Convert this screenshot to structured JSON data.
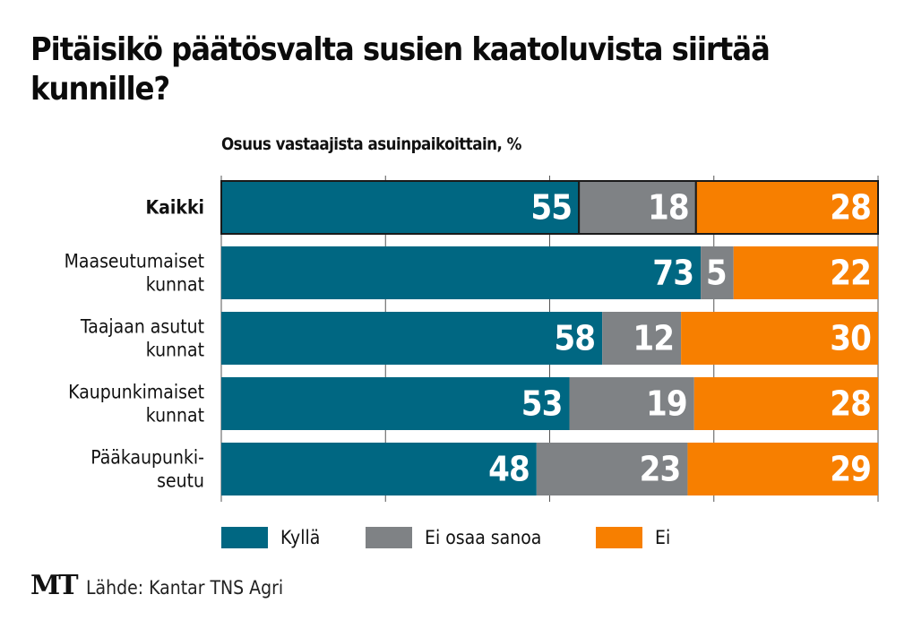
{
  "chart_data": {
    "type": "bar",
    "orientation": "horizontal",
    "stacked": true,
    "title": "Pitäisikö päätösvalta susien kaatoluvista siirtää kunnille?",
    "subtitle": "Osuus vastaajista asuinpaikoittain, %",
    "xlabel": "",
    "ylabel": "",
    "xlim": [
      0,
      100
    ],
    "grid": true,
    "gridlines": [
      0,
      25,
      50,
      75,
      100
    ],
    "categories": [
      [
        "Kaikki"
      ],
      [
        "Maaseutumaiset",
        "kunnat"
      ],
      [
        "Taajaan asutut",
        "kunnat"
      ],
      [
        "Kaupunkimaiset",
        "kunnat"
      ],
      [
        "Pääkaupunki-",
        "seutu"
      ]
    ],
    "highlighted_category": 0,
    "series": [
      {
        "name": "Kyllä",
        "color": "#006782",
        "values": [
          55,
          73,
          58,
          53,
          48
        ]
      },
      {
        "name": "Ei osaa sanoa",
        "color": "#7f8285",
        "values": [
          18,
          5,
          12,
          19,
          23
        ]
      },
      {
        "name": "Ei",
        "color": "#f77f00",
        "values": [
          28,
          22,
          30,
          28,
          29
        ]
      }
    ],
    "legend_position": "bottom"
  },
  "footer": {
    "logo": "MT",
    "source": "Lähde: Kantar TNS Agri"
  }
}
